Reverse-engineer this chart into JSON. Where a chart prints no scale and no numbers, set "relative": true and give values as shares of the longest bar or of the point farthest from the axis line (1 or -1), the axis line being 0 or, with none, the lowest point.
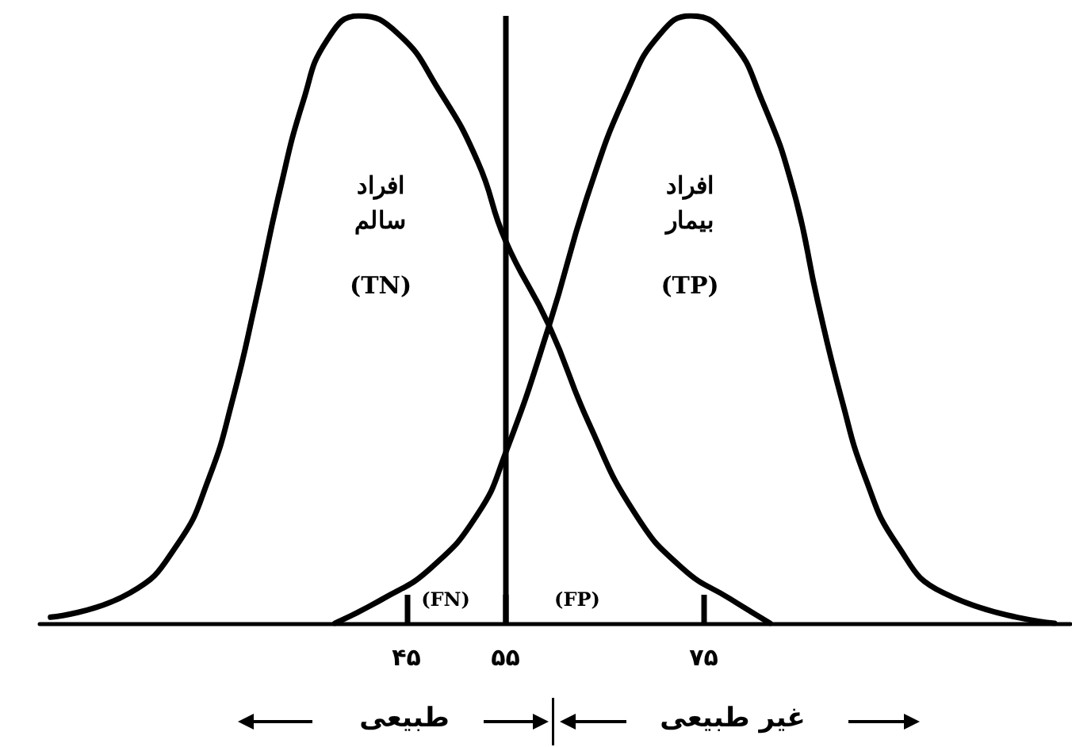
{
  "chart_data": {
    "type": "line",
    "relative": true,
    "grid": false,
    "marker": "none",
    "xlim": [
      8,
      112
    ],
    "xticks": [
      {
        "value": 45,
        "label": "۴۵"
      },
      {
        "value": 55,
        "label": "۵۵"
      },
      {
        "value": 75,
        "label": "۷۵"
      }
    ],
    "tick_labels": "x",
    "series": [
      {
        "color": "#000000",
        "x": [
          9.1,
          17.1,
          21.9,
          25.1,
          27.5,
          29.8,
          32.2,
          34.6,
          37.0,
          40.2,
          44.2,
          48.2,
          52.2,
          55,
          59.4,
          63.4,
          68.1,
          72.9,
          77.7,
          81.7
        ],
        "values": [
          0.01,
          0.05,
          0.13,
          0.24,
          0.37,
          0.53,
          0.71,
          0.86,
          0.96,
          1.0,
          0.97,
          0.88,
          0.76,
          0.63,
          0.49,
          0.33,
          0.18,
          0.09,
          0.04,
          0.0
        ]
      },
      {
        "color": "#000000",
        "x": [
          37.8,
          42.6,
          47.4,
          52.2,
          55,
          59.4,
          63.4,
          67.4,
          70.6,
          73.7,
          77.7,
          80.9,
          84.1,
          86.5,
          88.9,
          91.3,
          94.5,
          99.2,
          110.4
        ],
        "values": [
          0.0,
          0.04,
          0.09,
          0.18,
          0.28,
          0.49,
          0.71,
          0.88,
          0.97,
          1.0,
          0.96,
          0.86,
          0.71,
          0.53,
          0.37,
          0.24,
          0.13,
          0.05,
          0.0
        ]
      }
    ],
    "ref_lines": [
      {
        "axis": "x",
        "value": 55,
        "color": "#000000"
      }
    ],
    "annotations": [
      "افراد سالم",
      "(TN)",
      "افراد بیمار",
      "(TP)",
      "(FN)",
      "(FP)",
      "طبیعی",
      "غیر طبیعی"
    ]
  }
}
